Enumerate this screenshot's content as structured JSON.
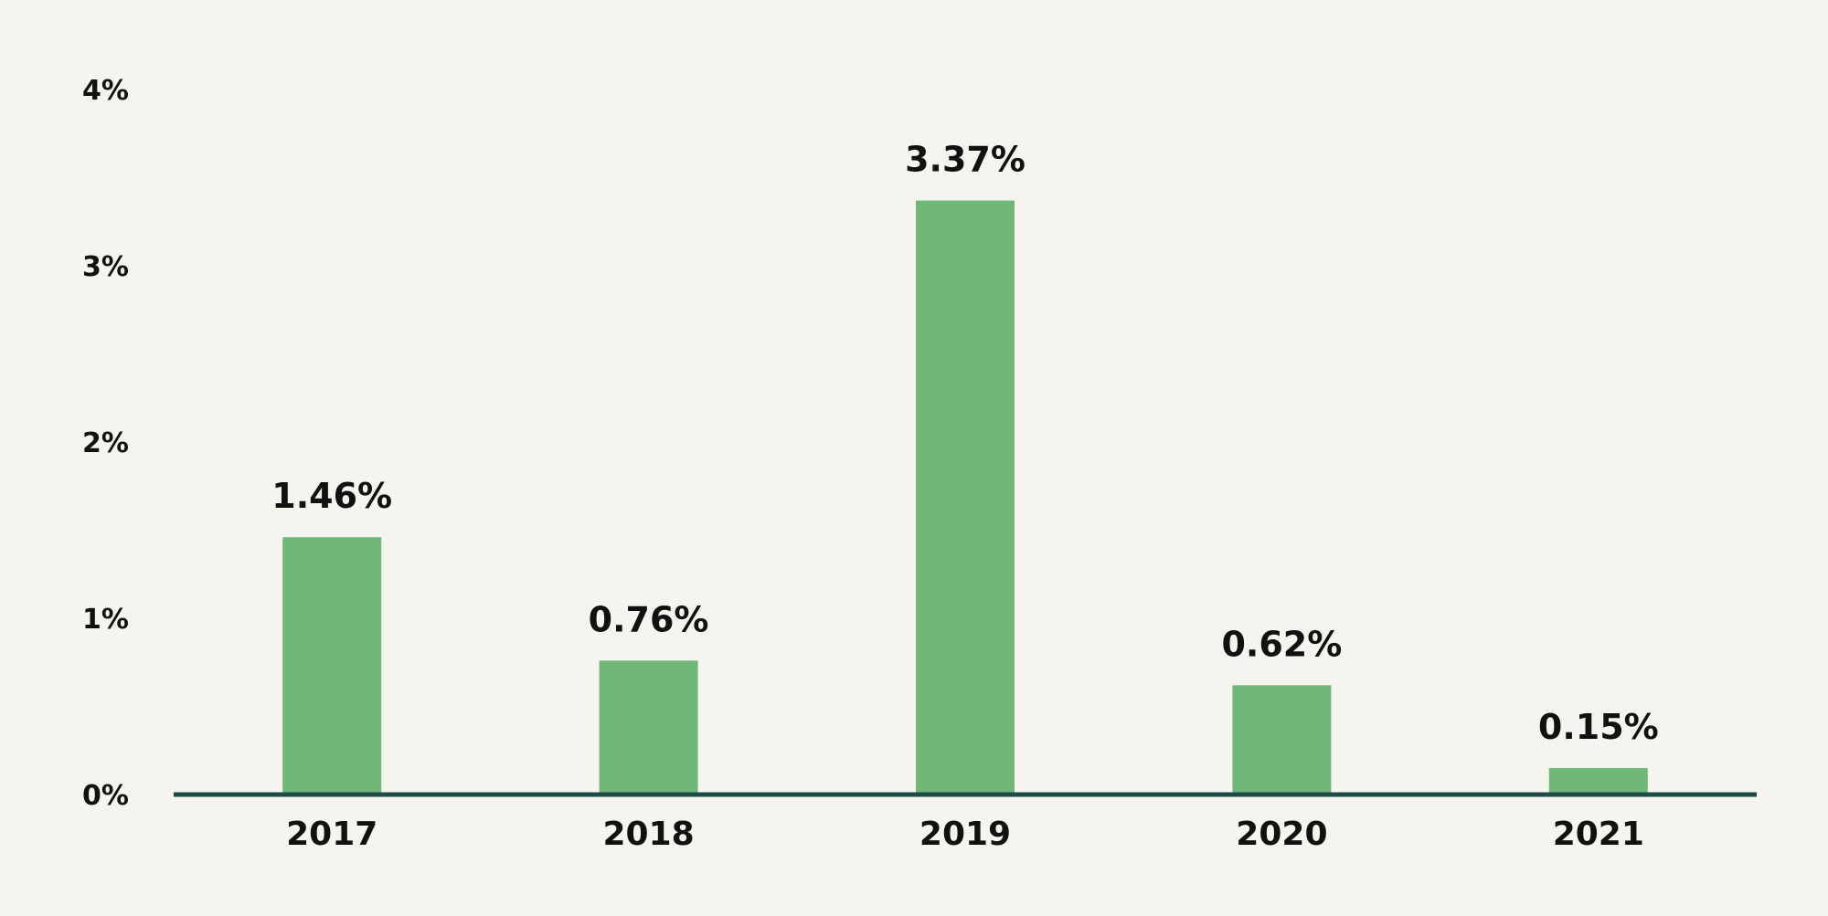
{
  "chart_data": {
    "type": "bar",
    "categories": [
      "2017",
      "2018",
      "2019",
      "2020",
      "2021"
    ],
    "values": [
      1.46,
      0.76,
      3.37,
      0.62,
      0.15
    ],
    "data_labels": [
      "1.46%",
      "0.76%",
      "3.37%",
      "0.62%",
      "0.15%"
    ],
    "y_ticks": [
      0,
      1,
      2,
      3,
      4
    ],
    "y_tick_labels": [
      "0%",
      "1%",
      "2%",
      "3%",
      "4%"
    ],
    "ylim": [
      0,
      4
    ],
    "grid": false,
    "colors": {
      "bar": "#70b87a",
      "baseline": "#1e4a48",
      "background": "#f5f4ee",
      "text": "#111111"
    }
  }
}
